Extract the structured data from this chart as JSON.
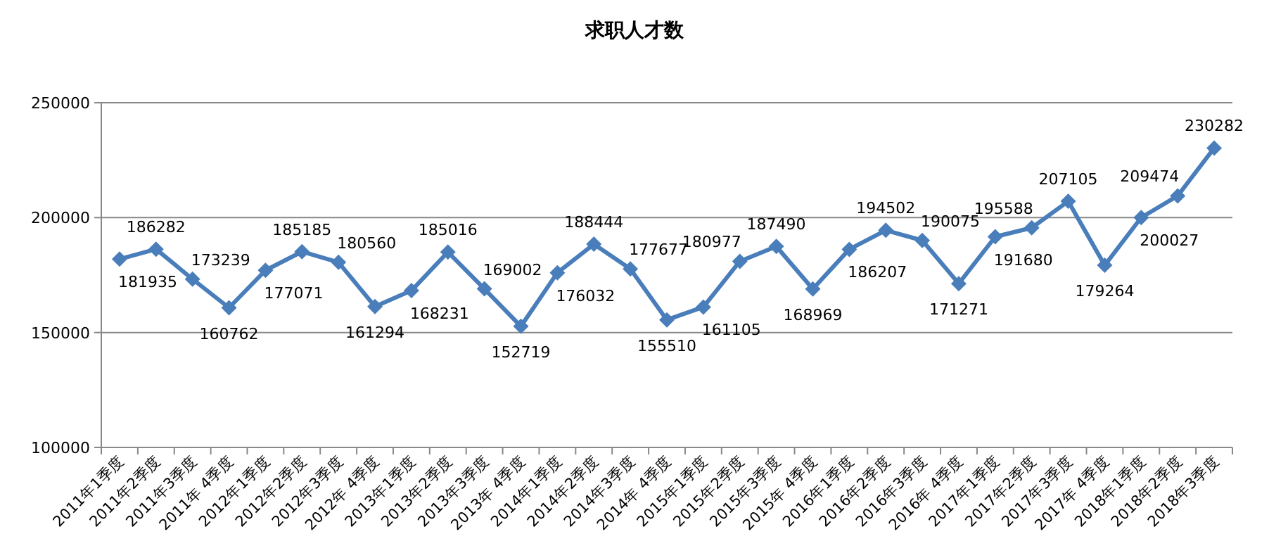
{
  "chart_data": {
    "type": "line",
    "title": "求职人才数",
    "categories": [
      "2011年1季度",
      "2011年2季度",
      "2011年3季度",
      "2011年 4季度",
      "2012年1季度",
      "2012年2季度",
      "2012年3季度",
      "2012年 4季度",
      "2013年1季度",
      "2013年2季度",
      "2013年3季度",
      "2013年 4季度",
      "2014年1季度",
      "2014年2季度",
      "2014年3季度",
      "2014年 4季度",
      "2015年1季度",
      "2015年2季度",
      "2015年3季度",
      "2015年 4季度",
      "2016年1季度",
      "2016年2季度",
      "2016年3季度",
      "2016年 4季度",
      "2017年1季度",
      "2017年2季度",
      "2017年3季度",
      "2017年 4季度",
      "2018年1季度",
      "2018年2季度",
      "2018年3季度"
    ],
    "series": [
      {
        "color": "#4a7ebb",
        "values": [
          181935,
          186282,
          173239,
          160762,
          177071,
          185185,
          180560,
          161294,
          168231,
          185016,
          169002,
          152719,
          176032,
          188444,
          177677,
          155510,
          161105,
          180977,
          187490,
          168969,
          186207,
          194502,
          190075,
          171271,
          191680,
          195588,
          207105,
          179264,
          200027,
          209474,
          230282
        ]
      }
    ],
    "ylim": [
      100000,
      250000
    ],
    "yticks": [
      100000,
      150000,
      200000,
      250000
    ],
    "grid": "y",
    "marker": "diamond",
    "line_style": "solid",
    "data_labels": true
  }
}
